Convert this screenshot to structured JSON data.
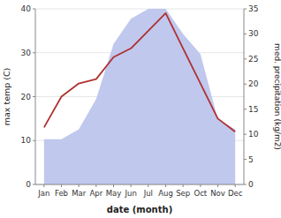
{
  "chart_data": {
    "type": "line",
    "xlabel": "date (month)",
    "ylabel": "max temp (C)",
    "y2label": "med. precipitation (kg/m2)",
    "categories": [
      "Jan",
      "Feb",
      "Mar",
      "Apr",
      "May",
      "Jun",
      "Jul",
      "Aug",
      "Sep",
      "Oct",
      "Nov",
      "Dec"
    ],
    "series": [
      {
        "type": "area",
        "axis": "y2",
        "color": "#c0c8ee",
        "values": [
          9,
          9,
          11,
          17,
          28,
          33,
          35,
          35,
          30,
          26,
          13,
          11
        ]
      },
      {
        "type": "line",
        "color": "#b03030",
        "values": [
          13,
          20,
          23,
          24,
          29,
          31,
          35,
          39,
          31,
          23,
          15,
          12
        ]
      }
    ],
    "ylim": [
      0,
      40
    ],
    "yticks": [
      0,
      10,
      20,
      30,
      40
    ],
    "y2lim": [
      0,
      35
    ],
    "y2ticks": [
      0,
      5,
      10,
      15,
      20,
      25,
      30,
      35
    ],
    "grid": true
  }
}
